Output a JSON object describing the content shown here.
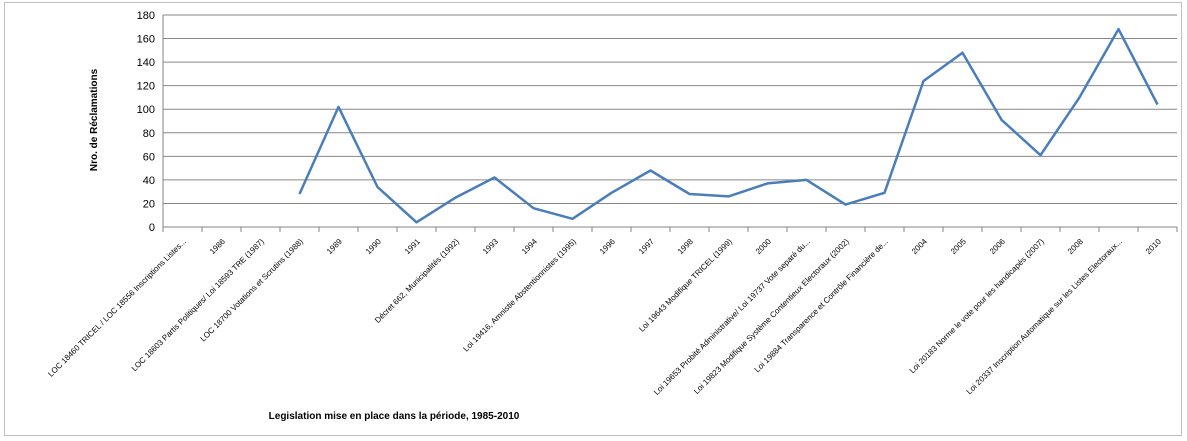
{
  "chart_data": {
    "type": "line",
    "title": "",
    "ylabel": "Nro. de Réclamations",
    "xlabel": "Legislation mise en place dans la période, 1985-2010",
    "ylim": [
      0,
      180
    ],
    "yticks": [
      0,
      20,
      40,
      60,
      80,
      100,
      120,
      140,
      160,
      180
    ],
    "grid": "horizontal",
    "legend": "none",
    "line_color": "#4a7ebb",
    "categories": [
      "LOC 18460 TRICEL / LOC 18556 Inscriptions Listes...",
      "1986",
      "LOC 18603 Partis Politiques/ Loi 18593 TRE (1987)",
      "LOC 18700 Votations et Scrutins (1988)",
      "1989",
      "1990",
      "1991",
      "Décret 662, Municipalités (1992)",
      "1993",
      "1994",
      "Loi 19416, Amnistie Abstentionnistes (1995)",
      "1996",
      "1997",
      "1998",
      "Loi 19643 Modifique TRICEL (1999)",
      "2000",
      "Loi 19653 Probité Administrative/ Loi 19737 Vote separé du...",
      "Loi 19823 Modifique Système Contentieux Electoraux (2002)",
      "Loi 19884 Transparence et Contrôle Financière de...",
      "2004",
      "2005",
      "2006",
      "Loi 20183 Norme le vote pour les handicapés (2007)",
      "2008",
      "Loi 20337 Inscription Automatique sur les Listes Electoraux...",
      "2010"
    ],
    "values": [
      null,
      null,
      null,
      28,
      102,
      34,
      4,
      25,
      42,
      16,
      7,
      29,
      48,
      28,
      26,
      37,
      40,
      19,
      29,
      124,
      148,
      91,
      61,
      110,
      168,
      104
    ]
  }
}
